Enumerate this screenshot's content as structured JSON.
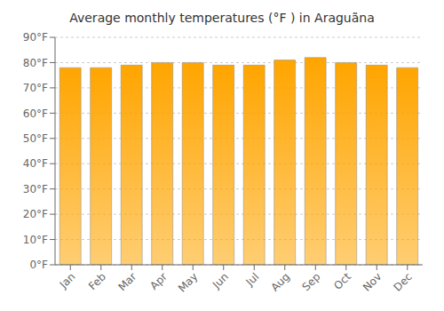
{
  "chart_data": {
    "type": "bar",
    "title": "Average monthly temperatures (°F ) in Araguã­na",
    "categories": [
      "Jan",
      "Feb",
      "Mar",
      "Apr",
      "May",
      "Jun",
      "Jul",
      "Aug",
      "Sep",
      "Oct",
      "Nov",
      "Dec"
    ],
    "values": [
      78,
      78,
      79,
      80,
      80,
      79,
      79,
      81,
      82,
      80,
      79,
      78
    ],
    "color": "#FFA500",
    "ylim": [
      0,
      90
    ],
    "yticks": [
      {
        "value": 0,
        "label": "0°F"
      },
      {
        "value": 10,
        "label": "10°F"
      },
      {
        "value": 20,
        "label": "20°F"
      },
      {
        "value": 30,
        "label": "30°F"
      },
      {
        "value": 40,
        "label": "40°F"
      },
      {
        "value": 50,
        "label": "50°F"
      },
      {
        "value": 60,
        "label": "60°F"
      },
      {
        "value": 70,
        "label": "70°F"
      },
      {
        "value": 80,
        "label": "80°F"
      },
      {
        "value": 90,
        "label": "90°F"
      }
    ],
    "grid": true
  }
}
